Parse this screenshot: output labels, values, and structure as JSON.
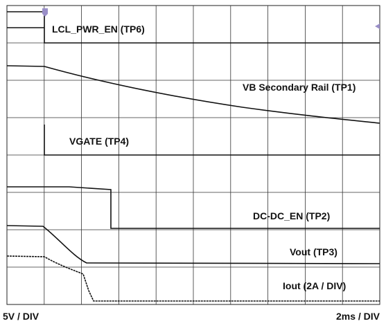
{
  "traces": [
    {
      "label": "LCL_PWR_EN (TP6)"
    },
    {
      "label": "VB Secondary Rail (TP1)"
    },
    {
      "label": "VGATE (TP4)"
    },
    {
      "label": "DC-DC_EN (TP2)"
    },
    {
      "label": "Vout (TP3)"
    },
    {
      "label": "Iout (2A / DIV)"
    }
  ],
  "footer": {
    "vertical_scale": "5V / DIV",
    "time_scale": "2ms / DIV"
  }
}
